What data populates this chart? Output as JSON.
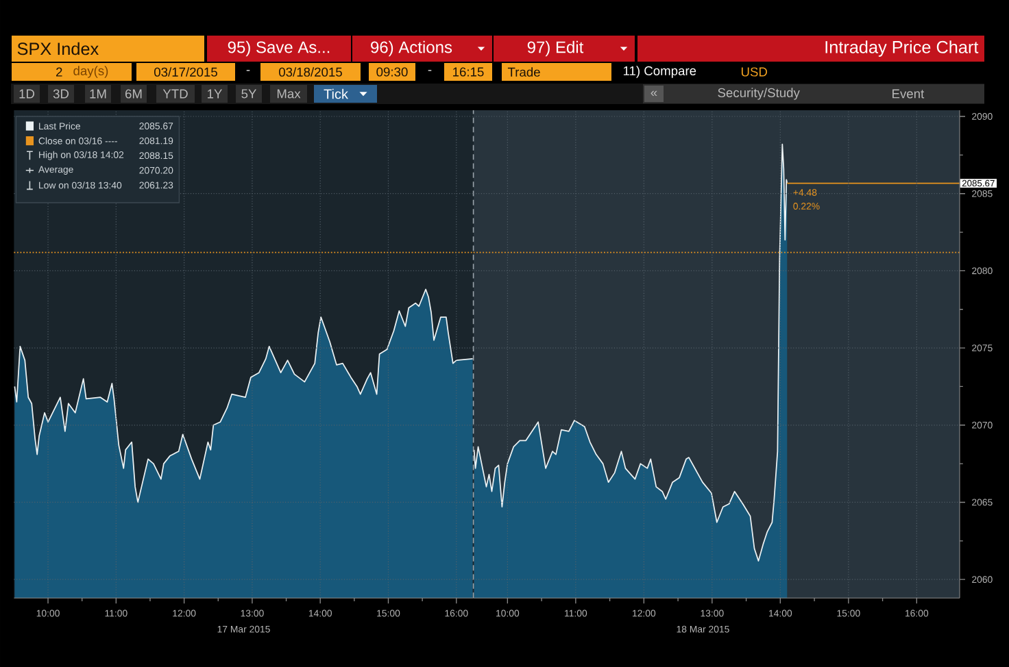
{
  "chart_data": [
    {
      "type": "area",
      "title": "SPX Index",
      "xlabel": "17 Mar 2015",
      "xlim": [
        9.5,
        16.25
      ],
      "ylim": [
        2058.8,
        2090.4
      ],
      "xticks": [
        {
          "value": 10,
          "label": "10:00"
        },
        {
          "value": 10.5,
          "label": null
        },
        {
          "value": 11,
          "label": "11:00"
        },
        {
          "value": 11.5,
          "label": null
        },
        {
          "value": 12,
          "label": "12:00"
        },
        {
          "value": 12.5,
          "label": null
        },
        {
          "value": 13,
          "label": "13:00"
        },
        {
          "value": 13.5,
          "label": null
        },
        {
          "value": 14,
          "label": "14:00"
        },
        {
          "value": 14.5,
          "label": null
        },
        {
          "value": 15,
          "label": "15:00"
        },
        {
          "value": 15.5,
          "label": null
        },
        {
          "value": 16,
          "label": "16:00"
        }
      ],
      "yticks": [
        2060,
        2065,
        2070,
        2075,
        2080,
        2085,
        2090
      ],
      "tick_labels": "x",
      "grid": true,
      "legend": "top left",
      "series": [
        {
          "name": "Last Price",
          "color": "#17587a",
          "x": [
            9.51,
            9.54,
            9.59,
            9.66,
            9.71,
            9.76,
            9.81,
            9.84,
            9.87,
            9.95,
            10.0,
            10.18,
            10.25,
            10.3,
            10.4,
            10.52,
            10.56,
            10.77,
            10.87,
            10.94,
            10.97,
            11.04,
            11.11,
            11.14,
            11.23,
            11.28,
            11.32,
            11.39,
            11.47,
            11.55,
            11.66,
            11.7,
            11.79,
            11.92,
            11.98,
            12.11,
            12.23,
            12.35,
            12.39,
            12.43,
            12.53,
            12.63,
            12.7,
            12.9,
            12.98,
            13.1,
            13.2,
            13.25,
            13.42,
            13.52,
            13.62,
            13.77,
            13.87,
            13.92,
            13.97,
            14.01,
            14.14,
            14.24,
            14.33,
            14.45,
            14.54,
            14.59,
            14.69,
            14.74,
            14.83,
            14.87,
            14.98,
            15.08,
            15.16,
            15.25,
            15.3,
            15.4,
            15.45,
            15.55,
            15.59,
            15.63,
            15.67,
            15.77,
            15.85,
            15.88,
            15.95,
            16.0,
            16.24
          ],
          "values": [
            2072.5,
            2071.5,
            2075.1,
            2074.2,
            2071.8,
            2071.4,
            2069.1,
            2068.1,
            2069.3,
            2070.8,
            2070.2,
            2071.8,
            2069.6,
            2071.4,
            2070.8,
            2073.0,
            2071.7,
            2071.8,
            2071.5,
            2072.7,
            2071.7,
            2068.7,
            2067.2,
            2068.4,
            2068.9,
            2066.0,
            2065.0,
            2066.3,
            2067.8,
            2067.5,
            2066.5,
            2067.5,
            2068.0,
            2068.3,
            2069.4,
            2067.8,
            2066.5,
            2068.9,
            2068.4,
            2070.0,
            2070.2,
            2071.1,
            2072.0,
            2071.8,
            2073.1,
            2073.4,
            2074.3,
            2075.1,
            2073.4,
            2074.2,
            2073.3,
            2072.8,
            2073.6,
            2074.0,
            2076.0,
            2077.0,
            2075.4,
            2073.9,
            2074.0,
            2073.1,
            2072.5,
            2072.0,
            2073.0,
            2073.4,
            2072.0,
            2074.6,
            2074.9,
            2076.1,
            2077.4,
            2076.4,
            2077.6,
            2077.9,
            2077.7,
            2078.8,
            2078.3,
            2077.3,
            2075.5,
            2077.0,
            2077.0,
            2076.0,
            2074.0,
            2074.2,
            2074.3
          ]
        }
      ],
      "ref_lines": [
        {
          "axis": "y",
          "value": 2081.19,
          "label": "Close on 03/16 ----",
          "color": "#e8941f",
          "line_style": "dotted"
        }
      ],
      "annotations": [
        "2",
        "day(s)",
        "03/17/2015",
        "-",
        "03/18/2015",
        "09:30",
        "-",
        "16:15",
        "Trade",
        "11) Compare",
        "USD",
        "95) Save As...",
        "96) Actions",
        "97) Edit",
        "1D",
        "3D",
        "1M",
        "6M",
        "YTD",
        "1Y",
        "5Y",
        "Max",
        "Tick",
        "«",
        "Security/Study",
        "Event",
        "2085.67",
        "2081.19",
        "High on 03/18 14:02",
        "2088.15",
        "Average",
        "2070.20",
        "Low on 03/18 13:40",
        "2061.23"
      ]
    },
    {
      "type": "area",
      "title": "Intraday Price Chart",
      "xlabel": "18 Mar 2015",
      "xlim": [
        9.5,
        16.63
      ],
      "ylim": [
        2058.8,
        2090.4
      ],
      "xticks": [
        {
          "value": 10,
          "label": "10:00"
        },
        {
          "value": 10.5,
          "label": null
        },
        {
          "value": 11,
          "label": "11:00"
        },
        {
          "value": 11.5,
          "label": null
        },
        {
          "value": 12,
          "label": "12:00"
        },
        {
          "value": 12.5,
          "label": null
        },
        {
          "value": 13,
          "label": "13:00"
        },
        {
          "value": 13.5,
          "label": null
        },
        {
          "value": 14,
          "label": "14:00"
        },
        {
          "value": 14.5,
          "label": null
        },
        {
          "value": 15,
          "label": "15:00"
        },
        {
          "value": 15.5,
          "label": null
        },
        {
          "value": 16,
          "label": "16:00"
        }
      ],
      "yticks": [
        2060,
        {
          "value": 2062.5,
          "label": null
        },
        2065,
        {
          "value": 2067.5,
          "label": null
        },
        2070,
        {
          "value": 2072.5,
          "label": null
        },
        2075,
        {
          "value": 2077.5,
          "label": null
        },
        2080,
        {
          "value": 2082.5,
          "label": null
        },
        2085,
        {
          "value": 2087.5,
          "label": null
        },
        2090
      ],
      "grid": true,
      "series": [
        {
          "color": "#17587a",
          "x": [
            9.51,
            9.53,
            9.57,
            9.69,
            9.73,
            9.77,
            9.82,
            9.87,
            9.92,
            9.96,
            10.0,
            10.09,
            10.18,
            10.27,
            10.36,
            10.45,
            10.56,
            10.66,
            10.71,
            10.79,
            10.9,
            10.98,
            11.13,
            11.21,
            11.3,
            11.4,
            11.48,
            11.57,
            11.67,
            11.73,
            11.87,
            11.95,
            12.05,
            12.1,
            12.18,
            12.27,
            12.32,
            12.42,
            12.52,
            12.62,
            12.66,
            12.86,
            12.99,
            13.07,
            13.16,
            13.25,
            13.33,
            13.45,
            13.56,
            13.62,
            13.68,
            13.75,
            13.81,
            13.88,
            13.91,
            13.96,
            13.99,
            14.03,
            14.05,
            14.07,
            14.09,
            14.1
          ],
          "values": [
            2068.4,
            2067.2,
            2068.6,
            2066.0,
            2066.8,
            2065.7,
            2067.2,
            2067.4,
            2064.7,
            2066.3,
            2067.5,
            2068.6,
            2069.0,
            2069.0,
            2069.6,
            2070.2,
            2067.2,
            2068.3,
            2068.1,
            2069.7,
            2069.6,
            2070.3,
            2069.9,
            2068.9,
            2068.1,
            2067.5,
            2066.3,
            2066.9,
            2068.3,
            2067.2,
            2066.5,
            2067.5,
            2067.2,
            2067.8,
            2066.0,
            2065.7,
            2065.2,
            2066.3,
            2066.6,
            2067.8,
            2067.9,
            2066.3,
            2065.6,
            2063.7,
            2064.7,
            2064.9,
            2065.7,
            2064.9,
            2064.1,
            2062.0,
            2061.2,
            2062.3,
            2063.1,
            2063.7,
            2065.2,
            2068.3,
            2080.8,
            2088.2,
            2086.6,
            2082.0,
            2085.9,
            2085.7
          ]
        }
      ],
      "ref_lines": [
        {
          "axis": "y",
          "value": 2081.19,
          "color": "#e8941f",
          "line_style": "dotted"
        },
        {
          "axis": "y",
          "value": 2085.67,
          "label": "2085.67",
          "color": "#e8941f",
          "line_style": "solid"
        },
        {
          "axis": "x",
          "value": 9.5,
          "color": "#9aa4ab",
          "line_style": "dashed"
        }
      ],
      "bands": [
        {
          "axis": "x",
          "from": 9.5,
          "to": 16.63,
          "color": "#28343d"
        }
      ],
      "annotations": [
        {
          "text": "+4.48",
          "x": 14.1,
          "y": 2085.67
        },
        {
          "text": "0.22%",
          "x": 14.1,
          "y": 2085.67
        }
      ]
    }
  ]
}
